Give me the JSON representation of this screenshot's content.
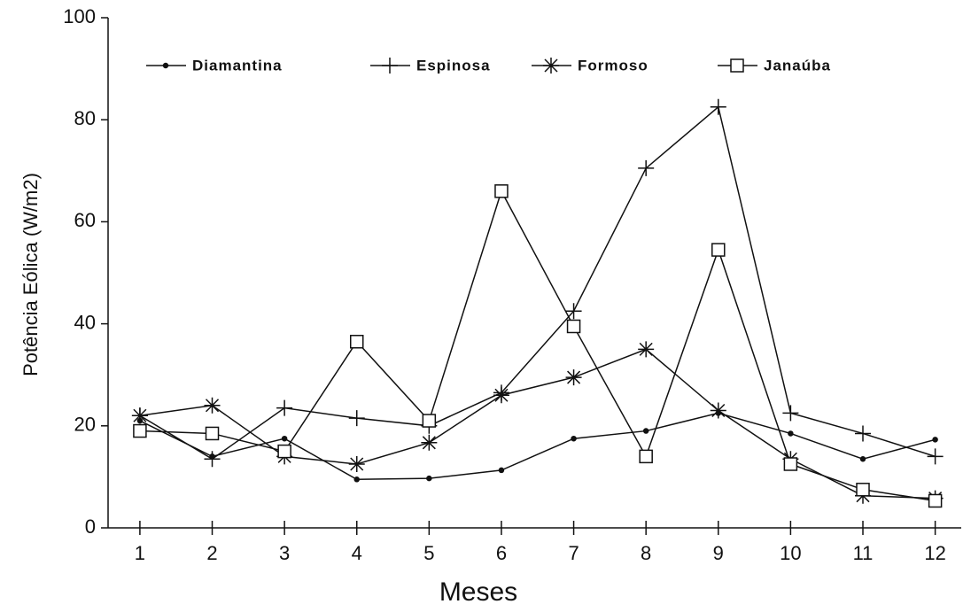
{
  "chart_data": {
    "type": "line",
    "x_label": "Meses",
    "y_label": "Potência Eólica (W/m2)",
    "x": [
      1,
      2,
      3,
      4,
      5,
      6,
      7,
      8,
      9,
      10,
      11,
      12
    ],
    "xlim": [
      0.56,
      12.36
    ],
    "xticks": [
      1,
      2,
      3,
      4,
      5,
      6,
      7,
      8,
      9,
      10,
      11,
      12
    ],
    "ylim": [
      0,
      100
    ],
    "yticks": [
      0,
      20,
      40,
      60,
      80,
      100
    ],
    "legend": "top",
    "series": [
      {
        "name": "Diamantina",
        "color": "#111111",
        "marker": "dot",
        "values": [
          21,
          14,
          17.5,
          9.5,
          9.7,
          11.3,
          17.5,
          19,
          22.5,
          18.5,
          13.5,
          17.3
        ]
      },
      {
        "name": "Espinosa",
        "color": "#111111",
        "marker": "plus",
        "values": [
          22,
          13.5,
          23.5,
          21.5,
          20,
          26.5,
          42.5,
          70.5,
          82.5,
          22.5,
          18.5,
          14
        ]
      },
      {
        "name": "Formoso",
        "color": "#111111",
        "marker": "asterisk",
        "values": [
          22,
          24,
          14,
          12.5,
          16.7,
          26,
          29.5,
          35,
          23,
          13.5,
          6.3,
          5.8
        ]
      },
      {
        "name": "Janaúba",
        "color": "#111111",
        "marker": "square",
        "values": [
          19,
          18.5,
          15,
          36.5,
          21,
          66,
          39.5,
          14,
          54.5,
          12.5,
          7.5,
          5.3
        ]
      }
    ]
  }
}
